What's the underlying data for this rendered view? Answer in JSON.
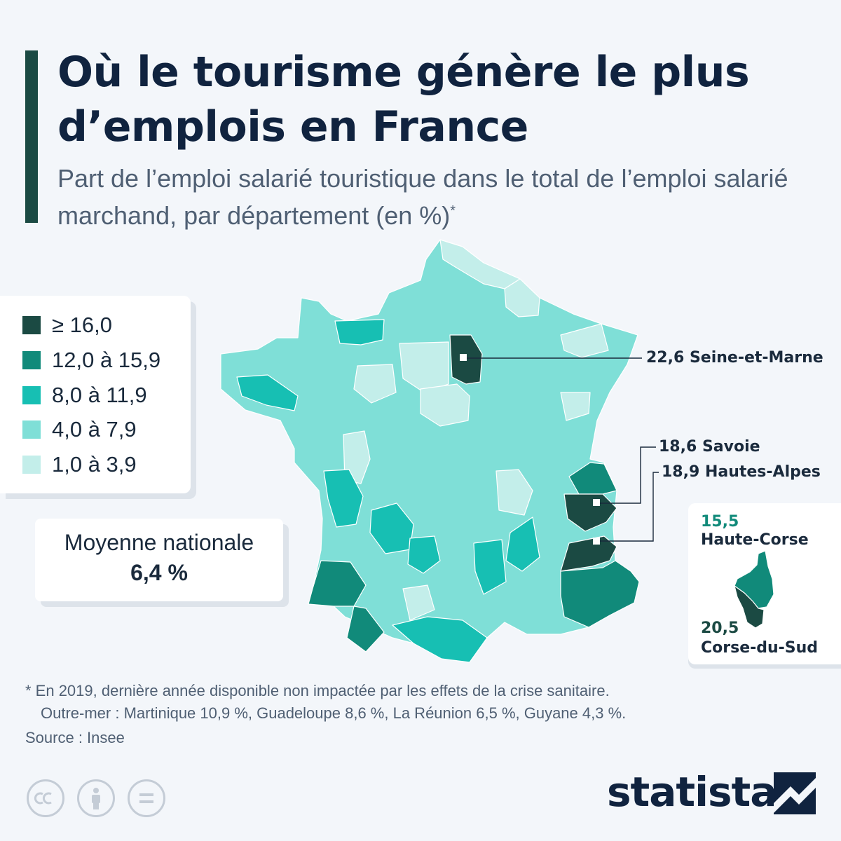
{
  "header": {
    "title": "Où le tourisme génère le plus d’emplois en France",
    "subtitle": "Part de l’emploi salarié touristique dans le total de l’emploi salarié marchand, par département (en %)",
    "subtitle_mark": "*"
  },
  "legend": {
    "items": [
      {
        "label": "≥ 16,0",
        "color": "#1b4a43"
      },
      {
        "label": "12,0 à 15,9",
        "color": "#118a7a"
      },
      {
        "label": "8,0 à 11,9",
        "color": "#17bfb3"
      },
      {
        "label": "4,0 à 7,9",
        "color": "#7fdfd7"
      },
      {
        "label": "1,0 à 3,9",
        "color": "#c3eeea"
      }
    ]
  },
  "national_average": {
    "label": "Moyenne nationale",
    "value": "6,4 %"
  },
  "callouts": {
    "seine_et_marne": {
      "value": "22,6",
      "name": "Seine-et-Marne"
    },
    "savoie": {
      "value": "18,6",
      "name": "Savoie"
    },
    "hautes_alpes": {
      "value": "18,9",
      "name": "Hautes-Alpes"
    }
  },
  "corse": {
    "haute_corse": {
      "value": "15,5",
      "name": "Haute-Corse"
    },
    "corse_du_sud": {
      "value": "20,5",
      "name": "Corse-du-Sud"
    }
  },
  "footnote": {
    "line1": "* En 2019, dernière année disponible non impactée par les effets de la crise sanitaire.",
    "line2": "Outre-mer : Martinique 10,9 %, Guadeloupe 8,6 %, La Réunion 6,5 %, Guyane 4,3 %."
  },
  "source": "Source : Insee",
  "brand": {
    "name": "statista"
  },
  "license_icons": [
    "cc-icon",
    "attribution-icon",
    "no-derivatives-icon"
  ],
  "colors": {
    "dark": "#1b4a43",
    "mid_dark": "#118a7a",
    "mid": "#17bfb3",
    "light": "#7fdfd7",
    "lightest": "#c3eeea"
  }
}
